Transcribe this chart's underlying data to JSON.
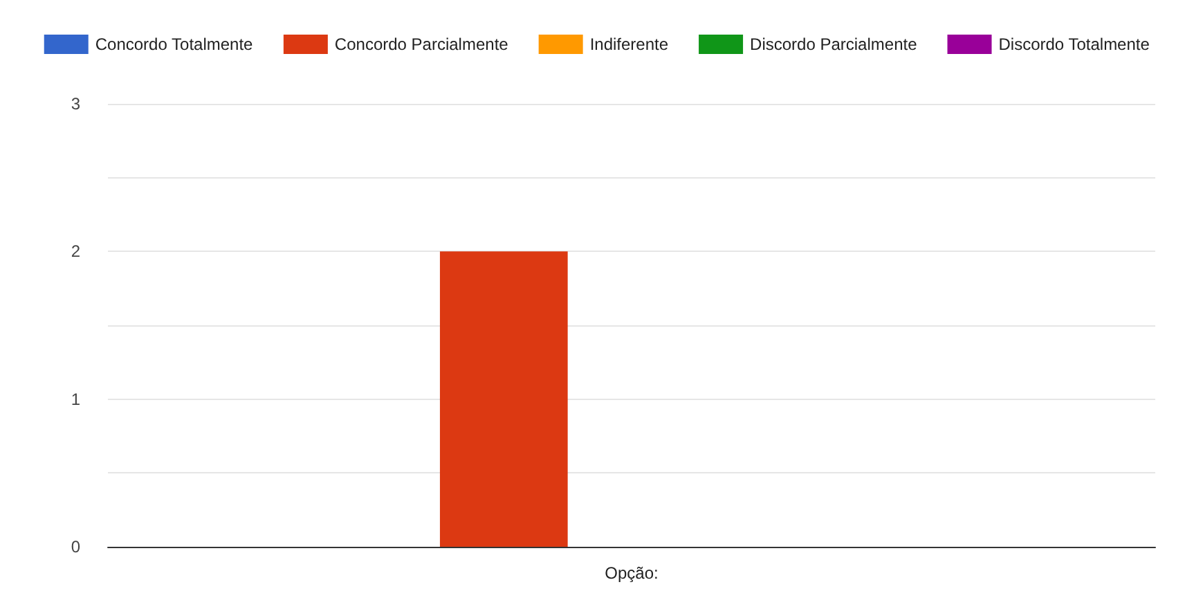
{
  "chart_data": {
    "type": "bar",
    "categories": [
      null
    ],
    "xlabel": "Opção:",
    "series": [
      {
        "name": "Concordo Totalmente",
        "color": "#3366cc",
        "values": [
          0
        ]
      },
      {
        "name": "Concordo Parcialmente",
        "color": "#dc3912",
        "values": [
          2
        ]
      },
      {
        "name": "Indiferente",
        "color": "#ff9900",
        "values": [
          0
        ]
      },
      {
        "name": "Discordo Parcialmente",
        "color": "#109618",
        "values": [
          0
        ]
      },
      {
        "name": "Discordo Totalmente",
        "color": "#990099",
        "values": [
          0
        ]
      }
    ],
    "ylim": [
      0,
      3
    ],
    "yticks": [
      0,
      {
        "value": 0.5,
        "label": null
      },
      1,
      {
        "value": 1.5,
        "label": null
      },
      2,
      {
        "value": 2.5,
        "label": null
      },
      3
    ],
    "grid": "y",
    "legend": "top"
  }
}
